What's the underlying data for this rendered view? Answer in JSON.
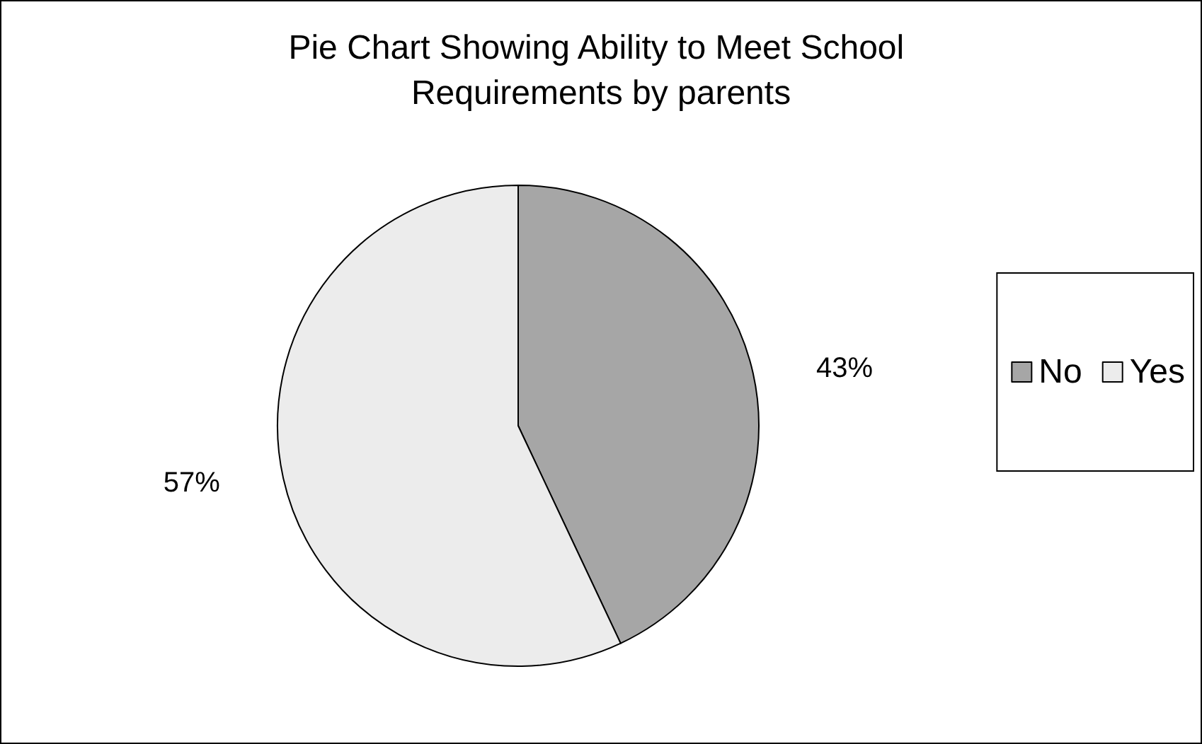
{
  "chart_data": {
    "type": "pie",
    "title": "Pie Chart Showing Ability to Meet School Requirements by parents",
    "categories": [
      "No",
      "Yes"
    ],
    "values": [
      43,
      57
    ],
    "colors": [
      "#a6a6a6",
      "#ececec"
    ],
    "value_labels": [
      "43%",
      "57%"
    ],
    "legend": "right"
  }
}
